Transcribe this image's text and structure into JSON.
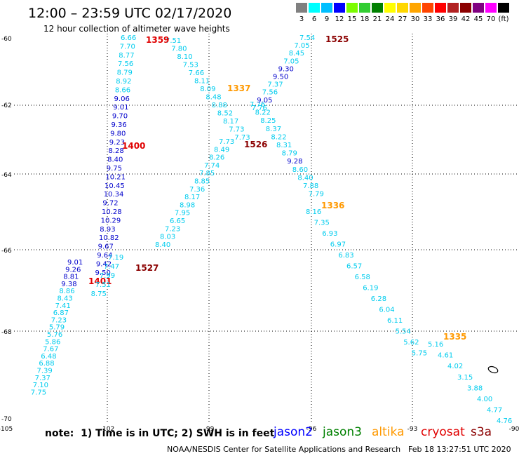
{
  "title": "12:00 – 23:59 UTC 02/17/2020",
  "subtitle": "12 hour collection of altimeter wave heights",
  "scale": {
    "colors": [
      "#808080",
      "#00ffff",
      "#00bfff",
      "#0000ff",
      "#7cfc00",
      "#32cd32",
      "#008000",
      "#ffff00",
      "#ffd700",
      "#ffa500",
      "#ff4500",
      "#ff0000",
      "#b22222",
      "#8b0000",
      "#800080",
      "#ff00ff",
      "#000000"
    ],
    "labels": [
      "3",
      "6",
      "9",
      "12",
      "15",
      "18",
      "21",
      "24",
      "27",
      "30",
      "33",
      "36",
      "39",
      "42",
      "45",
      "70",
      "(ft)"
    ]
  },
  "axes": {
    "lon_ticks": [
      "-105",
      "-102",
      "-99",
      "-96",
      "-93",
      "-90"
    ],
    "lat_ticks": [
      "-60",
      "-62",
      "-64",
      "-66",
      "-68",
      "-70"
    ]
  },
  "tracks": [
    {
      "sat": "jason2",
      "time": "1400",
      "time_color": "#e00000",
      "points": [
        [
          "6.66",
          "c"
        ],
        [
          "7.70",
          "c"
        ],
        [
          "8.77",
          "c"
        ],
        [
          "7.56",
          "c"
        ],
        [
          "8.79",
          "c"
        ],
        [
          "8.92",
          "c"
        ],
        [
          "8.66",
          "c"
        ],
        [
          "9.06",
          "b"
        ],
        [
          "9.01",
          "b"
        ],
        [
          "9.70",
          "b"
        ],
        [
          "9.36",
          "b"
        ],
        [
          "9.80",
          "b"
        ],
        [
          "9.23",
          "b"
        ],
        [
          "8.28",
          "b"
        ],
        [
          "8.40",
          "b"
        ],
        [
          "9.75",
          "b"
        ],
        [
          "10.21",
          "b"
        ],
        [
          "10.45",
          "b"
        ],
        [
          "10.34",
          "b"
        ],
        [
          "9.72",
          "b"
        ],
        [
          "10.28",
          "b"
        ],
        [
          "10.29",
          "b"
        ],
        [
          "8.93",
          "b"
        ],
        [
          "10.82",
          "b"
        ],
        [
          "9.67",
          "b"
        ],
        [
          "9.64",
          "b"
        ],
        [
          "9.42",
          "b"
        ],
        [
          "9.50",
          "b"
        ]
      ]
    },
    {
      "sat": "jason2",
      "time": "1401",
      "time_color": "#e00000",
      "points": [
        [
          "9.01",
          "b"
        ],
        [
          "9.26",
          "b"
        ],
        [
          "8.81",
          "b"
        ],
        [
          "9.38",
          "b"
        ],
        [
          "8.86",
          "c"
        ],
        [
          "8.43",
          "c"
        ],
        [
          "7.41",
          "c"
        ],
        [
          "6.87",
          "c"
        ],
        [
          "7.23",
          "c"
        ],
        [
          "5.79",
          "c"
        ],
        [
          "5.76",
          "c"
        ],
        [
          "5.86",
          "c"
        ],
        [
          "7.67",
          "c"
        ],
        [
          "6.48",
          "c"
        ],
        [
          "6.88",
          "c"
        ],
        [
          "7.39",
          "c"
        ],
        [
          "7.37",
          "c"
        ],
        [
          "7.10",
          "c"
        ],
        [
          "7.75",
          "c"
        ]
      ]
    },
    {
      "sat": "cryosat",
      "time": "1359",
      "time_color": "#e00000",
      "points": [
        [
          "7.51",
          "c"
        ],
        [
          "7.80",
          "c"
        ],
        [
          "8.10",
          "c"
        ],
        [
          "7.53",
          "c"
        ],
        [
          "7.66",
          "c"
        ],
        [
          "8.11",
          "c"
        ],
        [
          "8.09",
          "c"
        ],
        [
          "8.48",
          "c"
        ],
        [
          "8.88",
          "c"
        ],
        [
          "8.52",
          "c"
        ],
        [
          "8.17",
          "c"
        ],
        [
          "7.73",
          "c"
        ],
        [
          "7.73",
          "c"
        ]
      ]
    },
    {
      "sat": "altika",
      "time": "1337",
      "time_color": "#ff9900",
      "points": [
        [
          "7.76",
          "c"
        ],
        [
          "8.22",
          "c"
        ],
        [
          "8.25",
          "c"
        ],
        [
          "8.37",
          "c"
        ],
        [
          "8.22",
          "c"
        ],
        [
          "8.31",
          "c"
        ],
        [
          "8.79",
          "c"
        ],
        [
          "9.28",
          "b"
        ],
        [
          "8.60",
          "c"
        ],
        [
          "8.40",
          "c"
        ],
        [
          "7.88",
          "c"
        ],
        [
          "7.79",
          "c"
        ]
      ]
    },
    {
      "sat": "altika",
      "time": "1336",
      "time_color": "#ff9900",
      "points": [
        [
          "8.16",
          "c"
        ],
        [
          "7.35",
          "c"
        ],
        [
          "6.93",
          "c"
        ],
        [
          "6.97",
          "c"
        ],
        [
          "6.83",
          "c"
        ],
        [
          "6.57",
          "c"
        ],
        [
          "6.58",
          "c"
        ],
        [
          "6.19",
          "c"
        ],
        [
          "6.28",
          "c"
        ],
        [
          "6.04",
          "c"
        ],
        [
          "6.11",
          "c"
        ],
        [
          "5.54",
          "c"
        ],
        [
          "5.62",
          "c"
        ],
        [
          "5.75",
          "c"
        ]
      ]
    },
    {
      "sat": "altika",
      "time": "1335",
      "time_color": "#ff9900",
      "points": [
        [
          "5.16",
          "c"
        ],
        [
          "4.61",
          "c"
        ],
        [
          "4.02",
          "c"
        ],
        [
          "3.15",
          "c"
        ],
        [
          "3.88",
          "c"
        ],
        [
          "4.00",
          "c"
        ],
        [
          "4.77",
          "c"
        ],
        [
          "4.76",
          "c"
        ]
      ]
    },
    {
      "sat": "s3a",
      "time": "1525",
      "time_color": "#8b0000",
      "points": [
        [
          "7.54",
          "c"
        ],
        [
          "7.05",
          "c"
        ],
        [
          "8.45",
          "c"
        ],
        [
          "7.05",
          "c"
        ],
        [
          "9.30",
          "b"
        ],
        [
          "9.50",
          "b"
        ],
        [
          "7.37",
          "c"
        ],
        [
          "7.56",
          "c"
        ],
        [
          "9.05",
          "b"
        ],
        [
          "7.76",
          "c"
        ]
      ]
    },
    {
      "sat": "s3a",
      "time": "1526",
      "time_color": "#8b0000",
      "points": [
        [
          "7.73",
          "c"
        ],
        [
          "8.49",
          "c"
        ],
        [
          "8.26",
          "c"
        ],
        [
          "7.74",
          "c"
        ],
        [
          "7.85",
          "c"
        ],
        [
          "8.85",
          "c"
        ],
        [
          "7.36",
          "c"
        ],
        [
          "8.17",
          "c"
        ],
        [
          "8.98",
          "c"
        ],
        [
          "7.95",
          "c"
        ],
        [
          "6.65",
          "c"
        ],
        [
          "7.23",
          "c"
        ],
        [
          "8.03",
          "c"
        ],
        [
          "8.40",
          "c"
        ]
      ]
    },
    {
      "sat": "s3a",
      "time": "1527",
      "time_color": "#8b0000",
      "points": [
        [
          "7.19",
          "c"
        ],
        [
          "7.47",
          "c"
        ],
        [
          "7.99",
          "c"
        ],
        [
          "7.51",
          "c"
        ],
        [
          "8.75",
          "c"
        ]
      ]
    }
  ],
  "legend": {
    "note": "note:  1) Time is in UTC; 2) SWH is in feet",
    "sats": [
      {
        "label": "jason2",
        "color": "#0000ff"
      },
      {
        "label": "jason3",
        "color": "#008000"
      },
      {
        "label": "altika",
        "color": "#ff9900"
      },
      {
        "label": "cryosat",
        "color": "#e00000"
      },
      {
        "label": "s3a",
        "color": "#8b0000"
      }
    ]
  },
  "credit": "NOAA/NESDIS Center for Satellite Applications and Research",
  "timestamp": "Feb 18 13:27:51 UTC 2020",
  "text_colors": {
    "c": "#00ccee",
    "b": "#0000cc"
  }
}
